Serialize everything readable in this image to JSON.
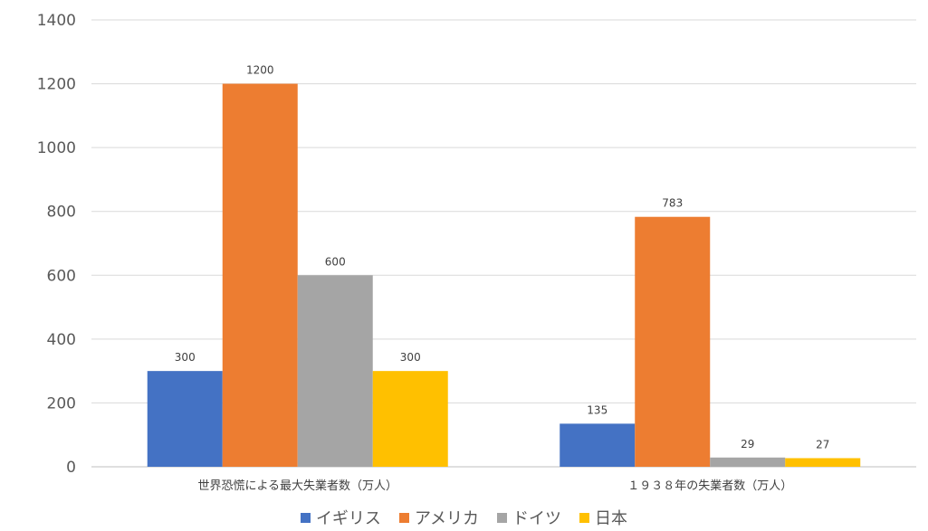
{
  "chart_data": {
    "type": "bar",
    "categories": [
      "世界恐慌による最大失業者数（万人）",
      "１９３８年の失業者数（万人）"
    ],
    "series": [
      {
        "name": "イギリス",
        "color": "#4472C4",
        "values": [
          300,
          135
        ]
      },
      {
        "name": "アメリカ",
        "color": "#ED7D31",
        "values": [
          1200,
          783
        ]
      },
      {
        "name": "ドイツ",
        "color": "#A5A5A5",
        "values": [
          600,
          29
        ]
      },
      {
        "name": "日本",
        "color": "#FFC000",
        "values": [
          300,
          27
        ]
      }
    ],
    "ylim": [
      0,
      1400
    ],
    "yticks": [
      0,
      200,
      400,
      600,
      800,
      1000,
      1200,
      1400
    ],
    "grid": true,
    "legend_position": "bottom",
    "data_labels": true
  }
}
